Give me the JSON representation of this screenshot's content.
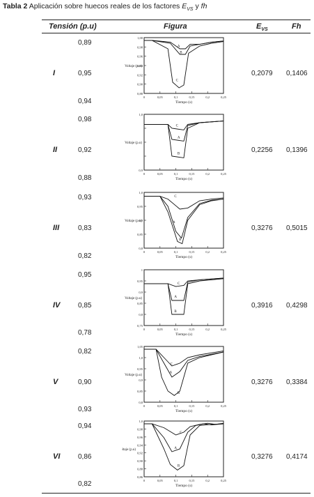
{
  "caption": {
    "bold": "Tabla 2",
    "text": "Aplicación sobre huecos reales de los factores",
    "e": "E",
    "sub": "VS",
    "and": "y",
    "fh": "fh"
  },
  "header": {
    "tension": "Tensión (p.u)",
    "figura": "Figura",
    "evs_e": "E",
    "evs_sub": "VS",
    "fh": "Fh"
  },
  "rows": [
    {
      "label": "I",
      "tensions": [
        "0,89",
        "0,95",
        "0,94"
      ],
      "evs": "0,2079",
      "fh": "0,1406",
      "fig": {
        "ylabel": "Voltaje (p.u)",
        "xlabel": "Tiempo (s)",
        "yticks": [
          "1,00",
          "0,98",
          "0,96",
          "0,94",
          "0,92",
          "0,90",
          "0,88"
        ],
        "xticks": [
          "0",
          "0,05",
          "0,1",
          "0,15",
          "0,2",
          "0,25"
        ],
        "curves": [
          "A",
          "B",
          "C"
        ]
      }
    },
    {
      "label": "II",
      "tensions": [
        "0,98",
        "0,92",
        "0,88"
      ],
      "evs": "0,2256",
      "fh": "0,1396",
      "fig": {
        "ylabel": "Voltaje (p.u)",
        "xlabel": "Tiempo (s)",
        "yticks": [
          "1,0",
          "",
          "",
          "",
          "0,9"
        ],
        "xticks": [
          "0",
          "0,05",
          "0,1",
          "0,15",
          "0,2",
          "0,25"
        ],
        "curves": [
          "C",
          "A",
          "B"
        ]
      }
    },
    {
      "label": "III",
      "tensions": [
        "0,93",
        "0,83",
        "0,82"
      ],
      "evs": "0,3276",
      "fh": "0,5015",
      "fig": {
        "ylabel": "Voltaje (p.u)",
        "xlabel": "Tiempo (s)",
        "yticks": [
          "1,0",
          "0,95",
          "0,9",
          "0,85",
          "0,8"
        ],
        "xticks": [
          "0",
          "0,05",
          "0,1",
          "0,15",
          "0,2",
          "0,25"
        ],
        "curves": [
          "C",
          "A",
          "B"
        ]
      }
    },
    {
      "label": "IV",
      "tensions": [
        "0,95",
        "0,85",
        "0,78"
      ],
      "evs": "0,3916",
      "fh": "0,4298",
      "fig": {
        "ylabel": "Voltaje (p.u)",
        "xlabel": "Tiempo (s)",
        "yticks": [
          "1",
          "0,95",
          "0,9",
          "0,85",
          "0,8",
          "0,75"
        ],
        "xticks": [
          "0",
          "0,05",
          "0,1",
          "0,15",
          "0,2",
          "0,25"
        ],
        "curves": [
          "C",
          "A",
          "B"
        ]
      }
    },
    {
      "label": "V",
      "tensions": [
        "0,82",
        "0,90",
        "0,93"
      ],
      "evs": "0,3276",
      "fh": "0,3384",
      "fig": {
        "ylabel": "Voltaje (p.u)",
        "xlabel": "Tiempo (s)",
        "yticks": [
          "1,05",
          "1,0",
          "0,95",
          "0,9",
          "0,85",
          "0,8"
        ],
        "xticks": [
          "0",
          "0,05",
          "0,1",
          "0,15",
          "0,2",
          "0,25"
        ],
        "curves": [
          "C",
          "A",
          "B"
        ]
      }
    },
    {
      "label": "VI",
      "tensions": [
        "0,94",
        "0,86",
        "0,82"
      ],
      "evs": "0,3276",
      "fh": "0,4174",
      "fig": {
        "ylabel": "Voltaje (p.u)",
        "xlabel": "Tiempo (s)",
        "yticks": [
          "1,0",
          "0,98",
          "0,96",
          "0,94",
          "0,92",
          "0,90",
          "0,88",
          "0,86"
        ],
        "xticks": [
          "0",
          "0,05",
          "0,1",
          "0,15",
          "0,2",
          "0,25"
        ],
        "curves": [
          "C",
          "A",
          "B"
        ]
      }
    }
  ]
}
